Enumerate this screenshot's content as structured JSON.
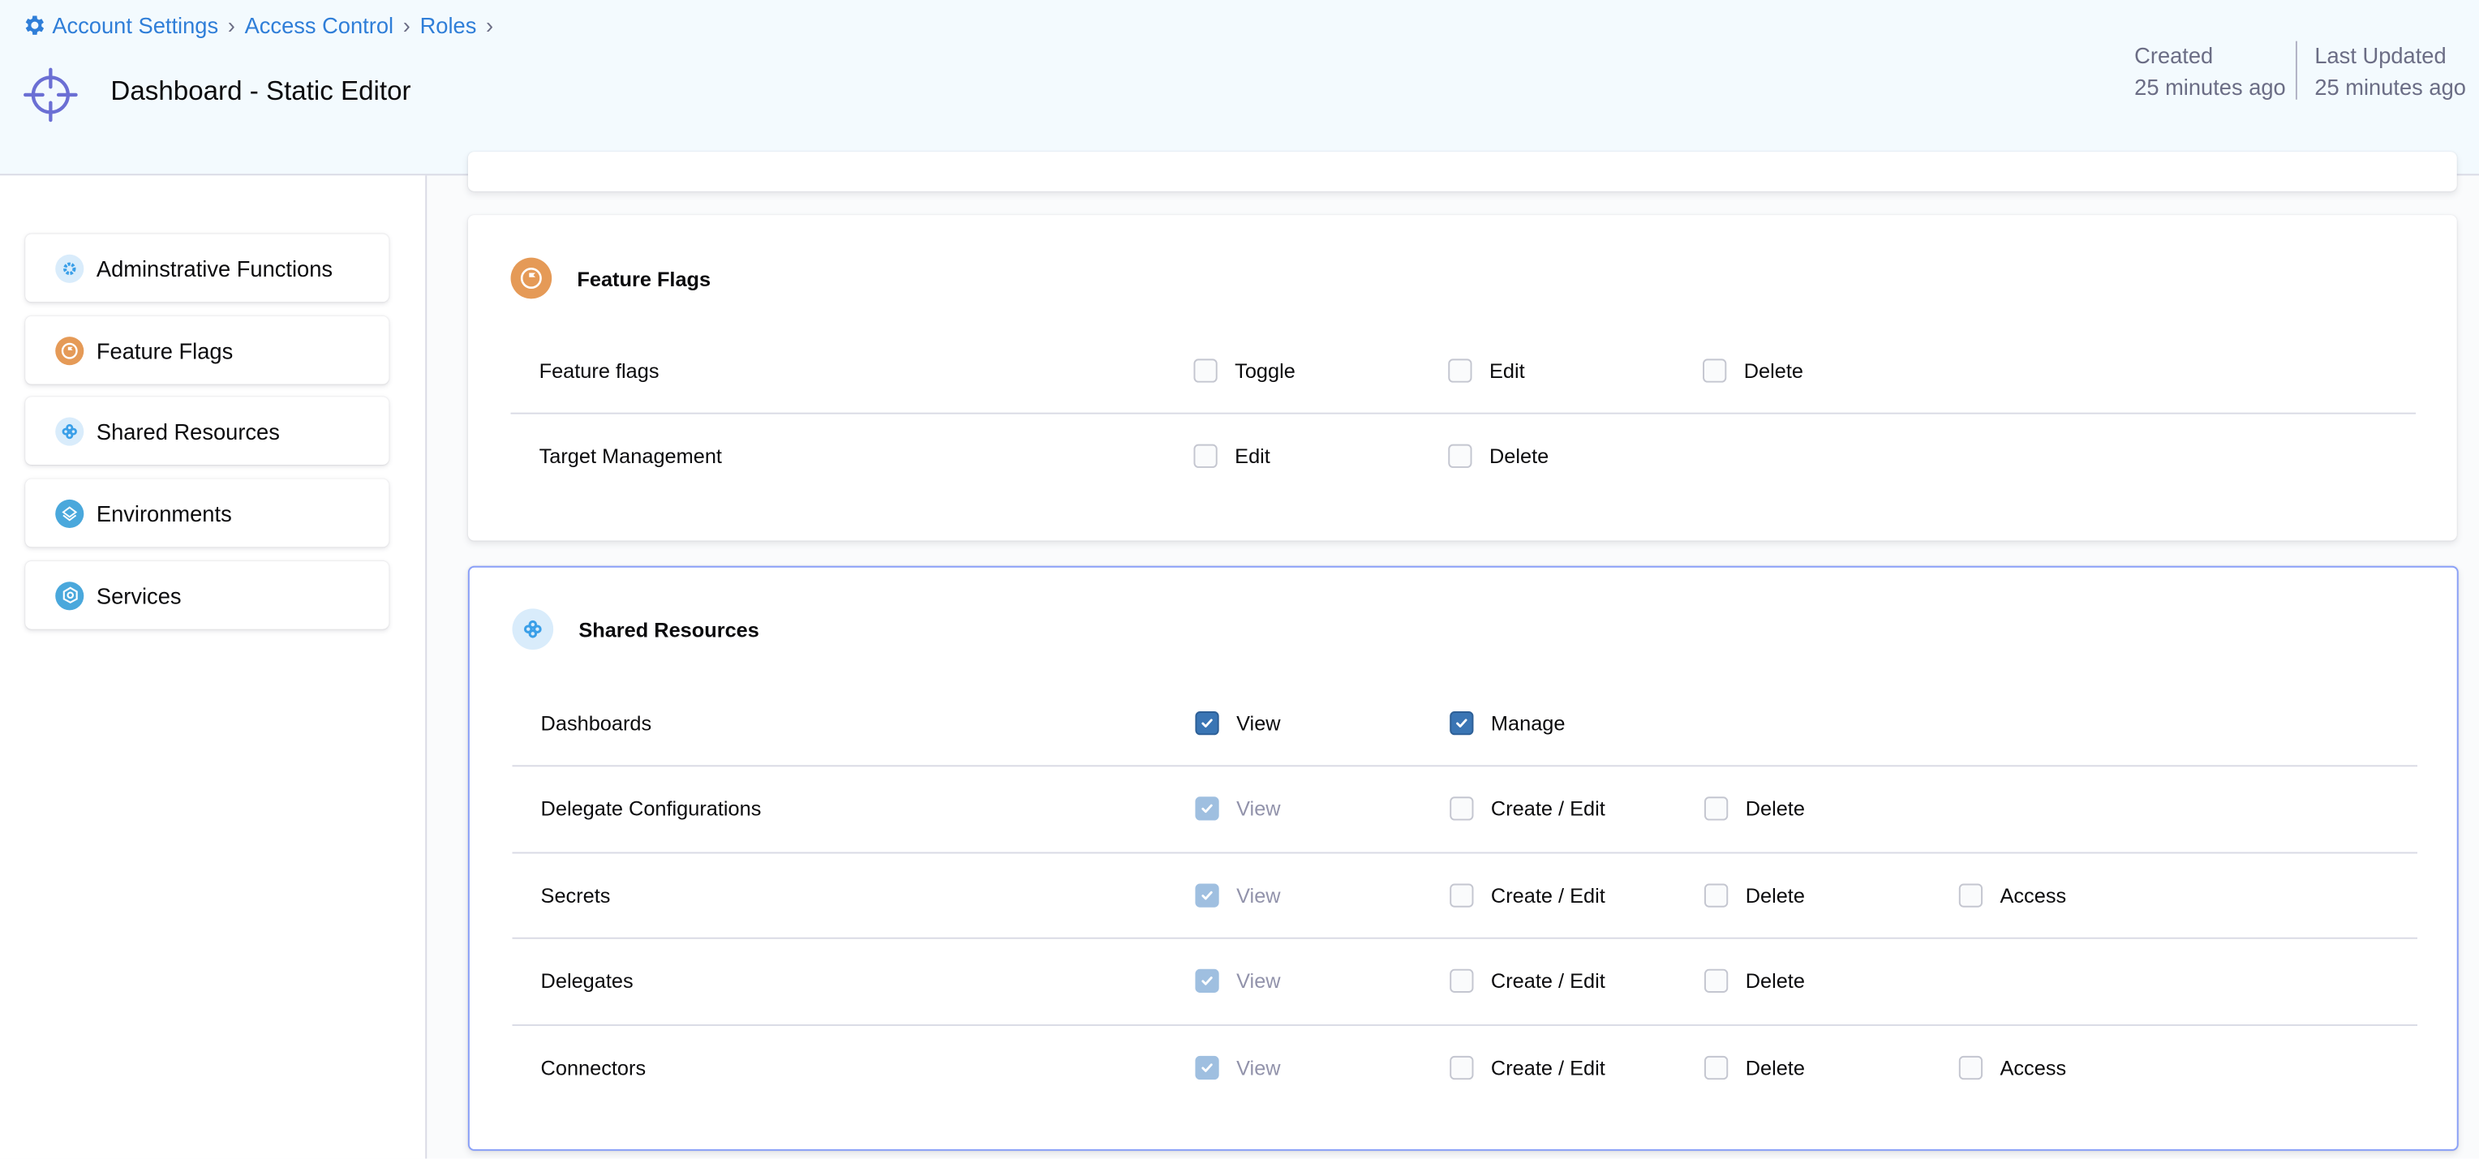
{
  "breadcrumb": [
    {
      "label": "Account Settings",
      "icon": "gear-icon"
    },
    {
      "label": "Access Control"
    },
    {
      "label": "Roles"
    }
  ],
  "header": {
    "title": "Dashboard - Static Editor",
    "icon": "crosshair-icon",
    "created_label": "Created",
    "created_value": "25 minutes ago",
    "updated_label": "Last Updated",
    "updated_value": "25 minutes ago"
  },
  "colors": {
    "accent": "#2f7ed8",
    "feature_flags": "#e59a57",
    "shared_resources_bg": "#d9ecfb",
    "environments": "#4aa8dc",
    "active_border": "#8aa0f8",
    "checked": "#3a75b4"
  },
  "sidebar": {
    "items": [
      {
        "label": "Adminstrative Functions",
        "icon": "gear-icon"
      },
      {
        "label": "Feature Flags",
        "icon": "flag-icon"
      },
      {
        "label": "Shared Resources",
        "icon": "shared-resources-icon"
      },
      {
        "label": "Environments",
        "icon": "environments-icon"
      },
      {
        "label": "Services",
        "icon": "services-icon"
      }
    ]
  },
  "sections": [
    {
      "title": "Feature Flags",
      "icon": "flag-icon",
      "rows": [
        {
          "name": "Feature flags",
          "perms": [
            {
              "label": "Toggle",
              "checked": false
            },
            {
              "label": "Edit",
              "checked": false
            },
            {
              "label": "Delete",
              "checked": false
            }
          ]
        },
        {
          "name": "Target Management",
          "perms": [
            {
              "label": "Edit",
              "checked": false
            },
            {
              "label": "Delete",
              "checked": false
            }
          ]
        }
      ]
    },
    {
      "title": "Shared Resources",
      "icon": "shared-resources-icon",
      "rows": [
        {
          "name": "Dashboards",
          "perms": [
            {
              "label": "View",
              "checked": true
            },
            {
              "label": "Manage",
              "checked": true
            }
          ]
        },
        {
          "name": "Delegate Configurations",
          "perms": [
            {
              "label": "View",
              "checked": true,
              "disabled": true
            },
            {
              "label": "Create / Edit",
              "checked": false
            },
            {
              "label": "Delete",
              "checked": false
            }
          ]
        },
        {
          "name": "Secrets",
          "perms": [
            {
              "label": "View",
              "checked": true,
              "disabled": true
            },
            {
              "label": "Create / Edit",
              "checked": false
            },
            {
              "label": "Delete",
              "checked": false
            },
            {
              "label": "Access",
              "checked": false
            }
          ]
        },
        {
          "name": "Delegates",
          "perms": [
            {
              "label": "View",
              "checked": true,
              "disabled": true
            },
            {
              "label": "Create / Edit",
              "checked": false
            },
            {
              "label": "Delete",
              "checked": false
            }
          ]
        },
        {
          "name": "Connectors",
          "perms": [
            {
              "label": "View",
              "checked": true,
              "disabled": true
            },
            {
              "label": "Create / Edit",
              "checked": false
            },
            {
              "label": "Delete",
              "checked": false
            },
            {
              "label": "Access",
              "checked": false
            }
          ]
        }
      ]
    }
  ]
}
